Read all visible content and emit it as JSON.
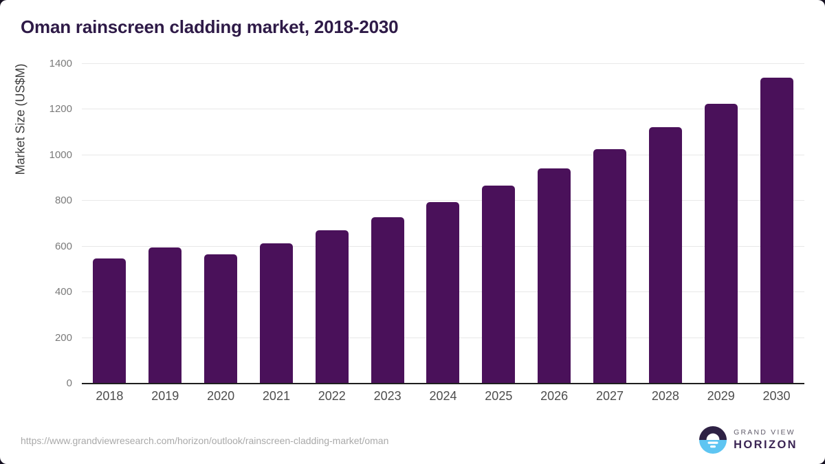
{
  "page": {
    "source_url": "https://www.grandviewresearch.com/horizon/outlook/rainscreen-cladding-market/oman"
  },
  "logo": {
    "top_text": "GRAND VIEW",
    "bottom_text": "HORIZON",
    "mark_top_color": "#2e2144",
    "mark_bottom_color": "#5ec5f2"
  },
  "colors": {
    "bar": "#4a115a",
    "title": "#2e1a47",
    "gridline": "#e8e8e8",
    "axis_line": "#1f1f1f",
    "y_tick_label": "#7a7a7a",
    "x_tick_label": "#4d4d4d",
    "source_text": "#a9a9a9"
  },
  "chart_data": {
    "type": "bar",
    "title": "Oman rainscreen cladding market, 2018-2030",
    "categories": [
      "2018",
      "2019",
      "2020",
      "2021",
      "2022",
      "2023",
      "2024",
      "2025",
      "2026",
      "2027",
      "2028",
      "2029",
      "2030"
    ],
    "values": [
      548,
      597,
      565,
      614,
      672,
      729,
      794,
      866,
      943,
      1027,
      1123,
      1226,
      1341
    ],
    "xlabel": "",
    "ylabel": "Market Size (US$M)",
    "ylim": [
      0,
      1400
    ],
    "ytick_step": 200,
    "yticks": [
      0,
      200,
      400,
      600,
      800,
      1000,
      1200,
      1400
    ],
    "grid": true,
    "legend": "none",
    "bar_color": "#4a115a"
  }
}
